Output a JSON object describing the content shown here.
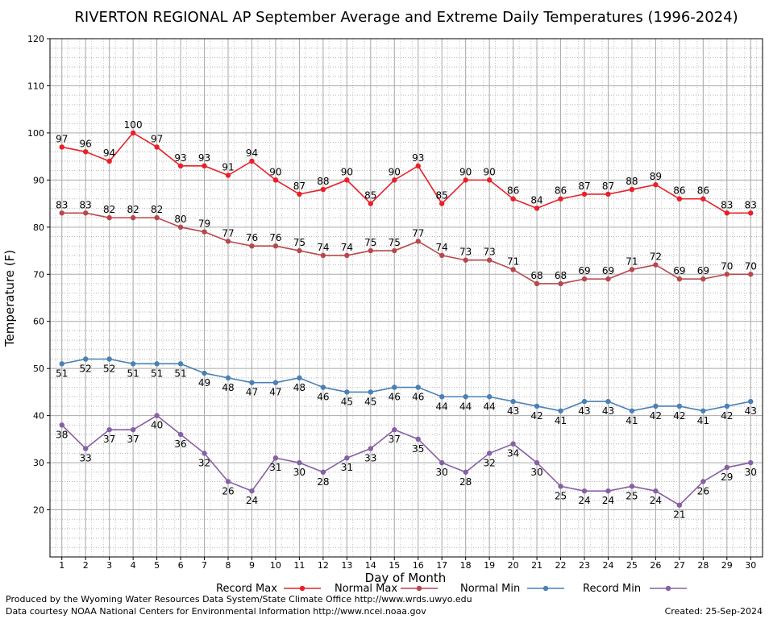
{
  "chart_data": {
    "type": "line",
    "title": "RIVERTON REGIONAL AP September Average and Extreme Daily Temperatures (1996-2024)",
    "xlabel": "Day of Month",
    "ylabel": "Temperature (F)",
    "xlim": [
      0.5,
      30.5
    ],
    "ylim": [
      10,
      120
    ],
    "yticks": [
      20,
      30,
      40,
      50,
      60,
      70,
      80,
      90,
      100,
      110,
      120
    ],
    "grid": true,
    "legend": "bottom",
    "x": [
      1,
      2,
      3,
      4,
      5,
      6,
      7,
      8,
      9,
      10,
      11,
      12,
      13,
      14,
      15,
      16,
      17,
      18,
      19,
      20,
      21,
      22,
      23,
      24,
      25,
      26,
      27,
      28,
      29,
      30
    ],
    "series": [
      {
        "name": "Record Max",
        "color": "#e8202a",
        "label_pos": "above",
        "values": [
          97,
          96,
          94,
          100,
          97,
          93,
          93,
          91,
          94,
          90,
          87,
          88,
          90,
          85,
          90,
          93,
          85,
          90,
          90,
          86,
          84,
          86,
          87,
          87,
          88,
          89,
          86,
          86,
          83,
          83
        ]
      },
      {
        "name": "Normal Max",
        "color": "#b8474d",
        "label_pos": "above",
        "values": [
          83,
          83,
          82,
          82,
          82,
          80,
          79,
          77,
          76,
          76,
          75,
          74,
          74,
          75,
          75,
          77,
          74,
          73,
          73,
          71,
          68,
          68,
          69,
          69,
          71,
          72,
          69,
          69,
          70,
          70
        ]
      },
      {
        "name": "Normal Min",
        "color": "#4a80b4",
        "label_pos": "below",
        "values": [
          51,
          52,
          52,
          51,
          51,
          51,
          49,
          48,
          47,
          47,
          48,
          46,
          45,
          45,
          46,
          46,
          44,
          44,
          44,
          43,
          42,
          41,
          43,
          43,
          41,
          42,
          42,
          41,
          42,
          43
        ]
      },
      {
        "name": "Record Min",
        "color": "#8660a4",
        "label_pos": "below",
        "values": [
          38,
          33,
          37,
          37,
          40,
          36,
          32,
          26,
          24,
          31,
          30,
          28,
          31,
          33,
          37,
          35,
          30,
          28,
          32,
          34,
          30,
          25,
          24,
          24,
          25,
          24,
          21,
          26,
          29,
          30
        ]
      }
    ]
  },
  "footer": {
    "produced_by": "Produced by the Wyoming Water Resources Data System/State Climate Office http://www.wrds.uwyo.edu",
    "data_courtesy": "Data courtesy NOAA National Centers for Environmental Information http://www.ncei.noaa.gov",
    "created": "Created:  25-Sep-2024"
  }
}
